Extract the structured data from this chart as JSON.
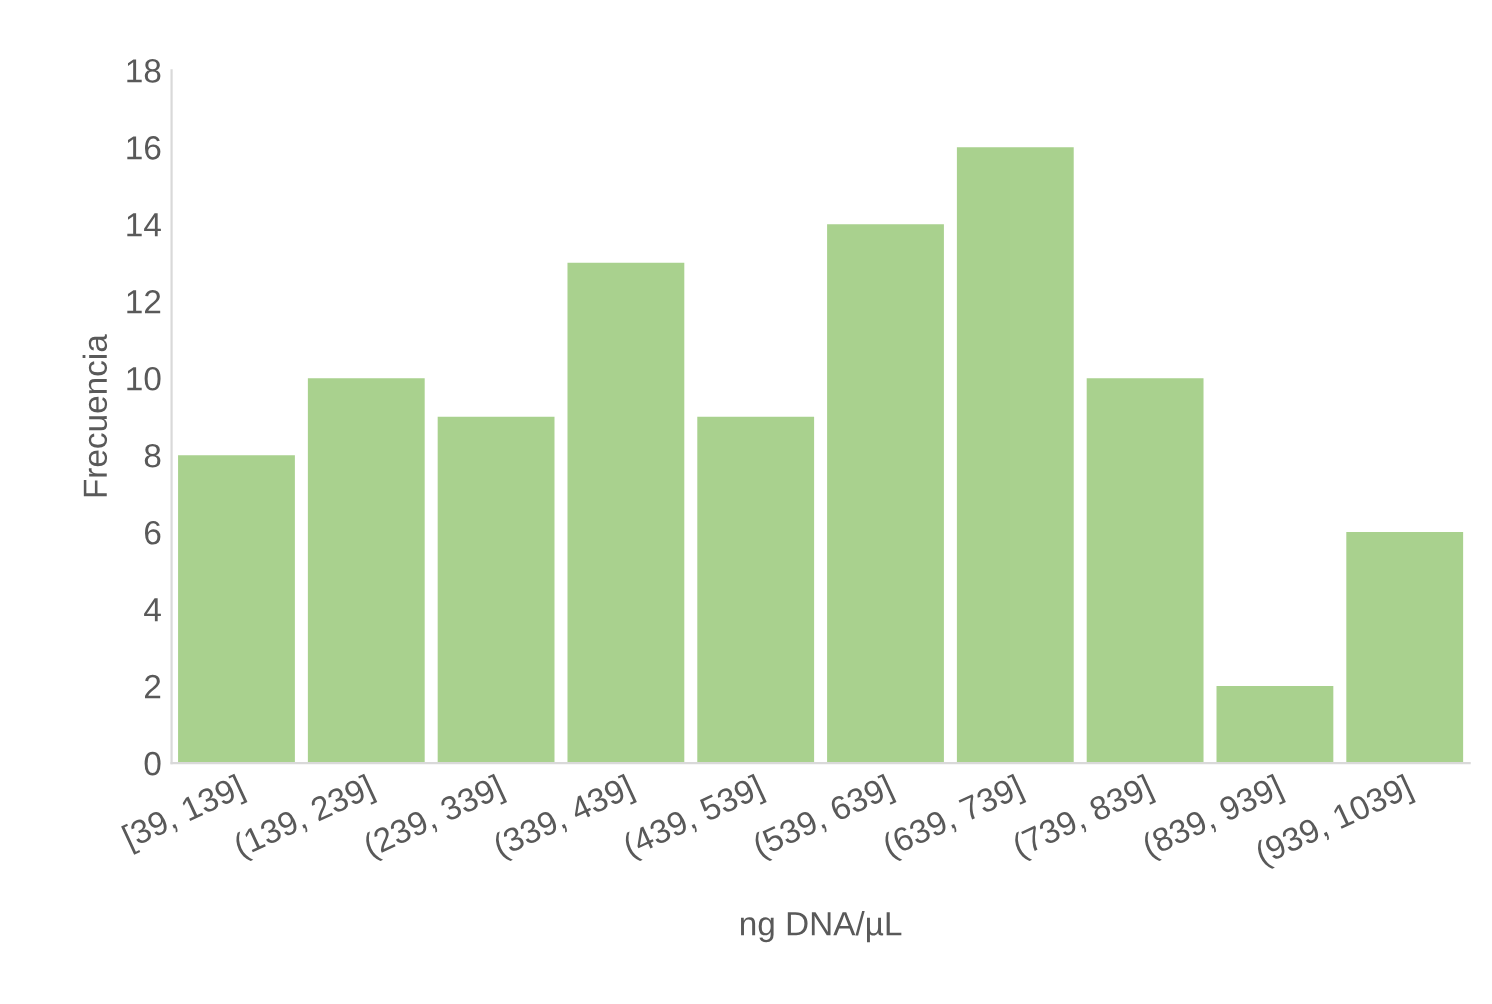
{
  "chart_data": {
    "type": "bar",
    "xlabel": "ng DNA/µL",
    "ylabel": "Frecuencia",
    "categories": [
      "[39, 139]",
      "(139, 239]",
      "(239, 339]",
      "(339, 439]",
      "(439, 539]",
      "(539, 639]",
      "(639, 739]",
      "(739, 839]",
      "(839, 939]",
      "(939, 1039]"
    ],
    "values": [
      8,
      10,
      9,
      13,
      9,
      14,
      16,
      10,
      2,
      6
    ],
    "color": "#a9d18e",
    "ylim": [
      0,
      18
    ],
    "yticks": [
      0,
      2,
      4,
      6,
      8,
      10,
      12,
      14,
      16,
      18
    ],
    "grid": false
  }
}
